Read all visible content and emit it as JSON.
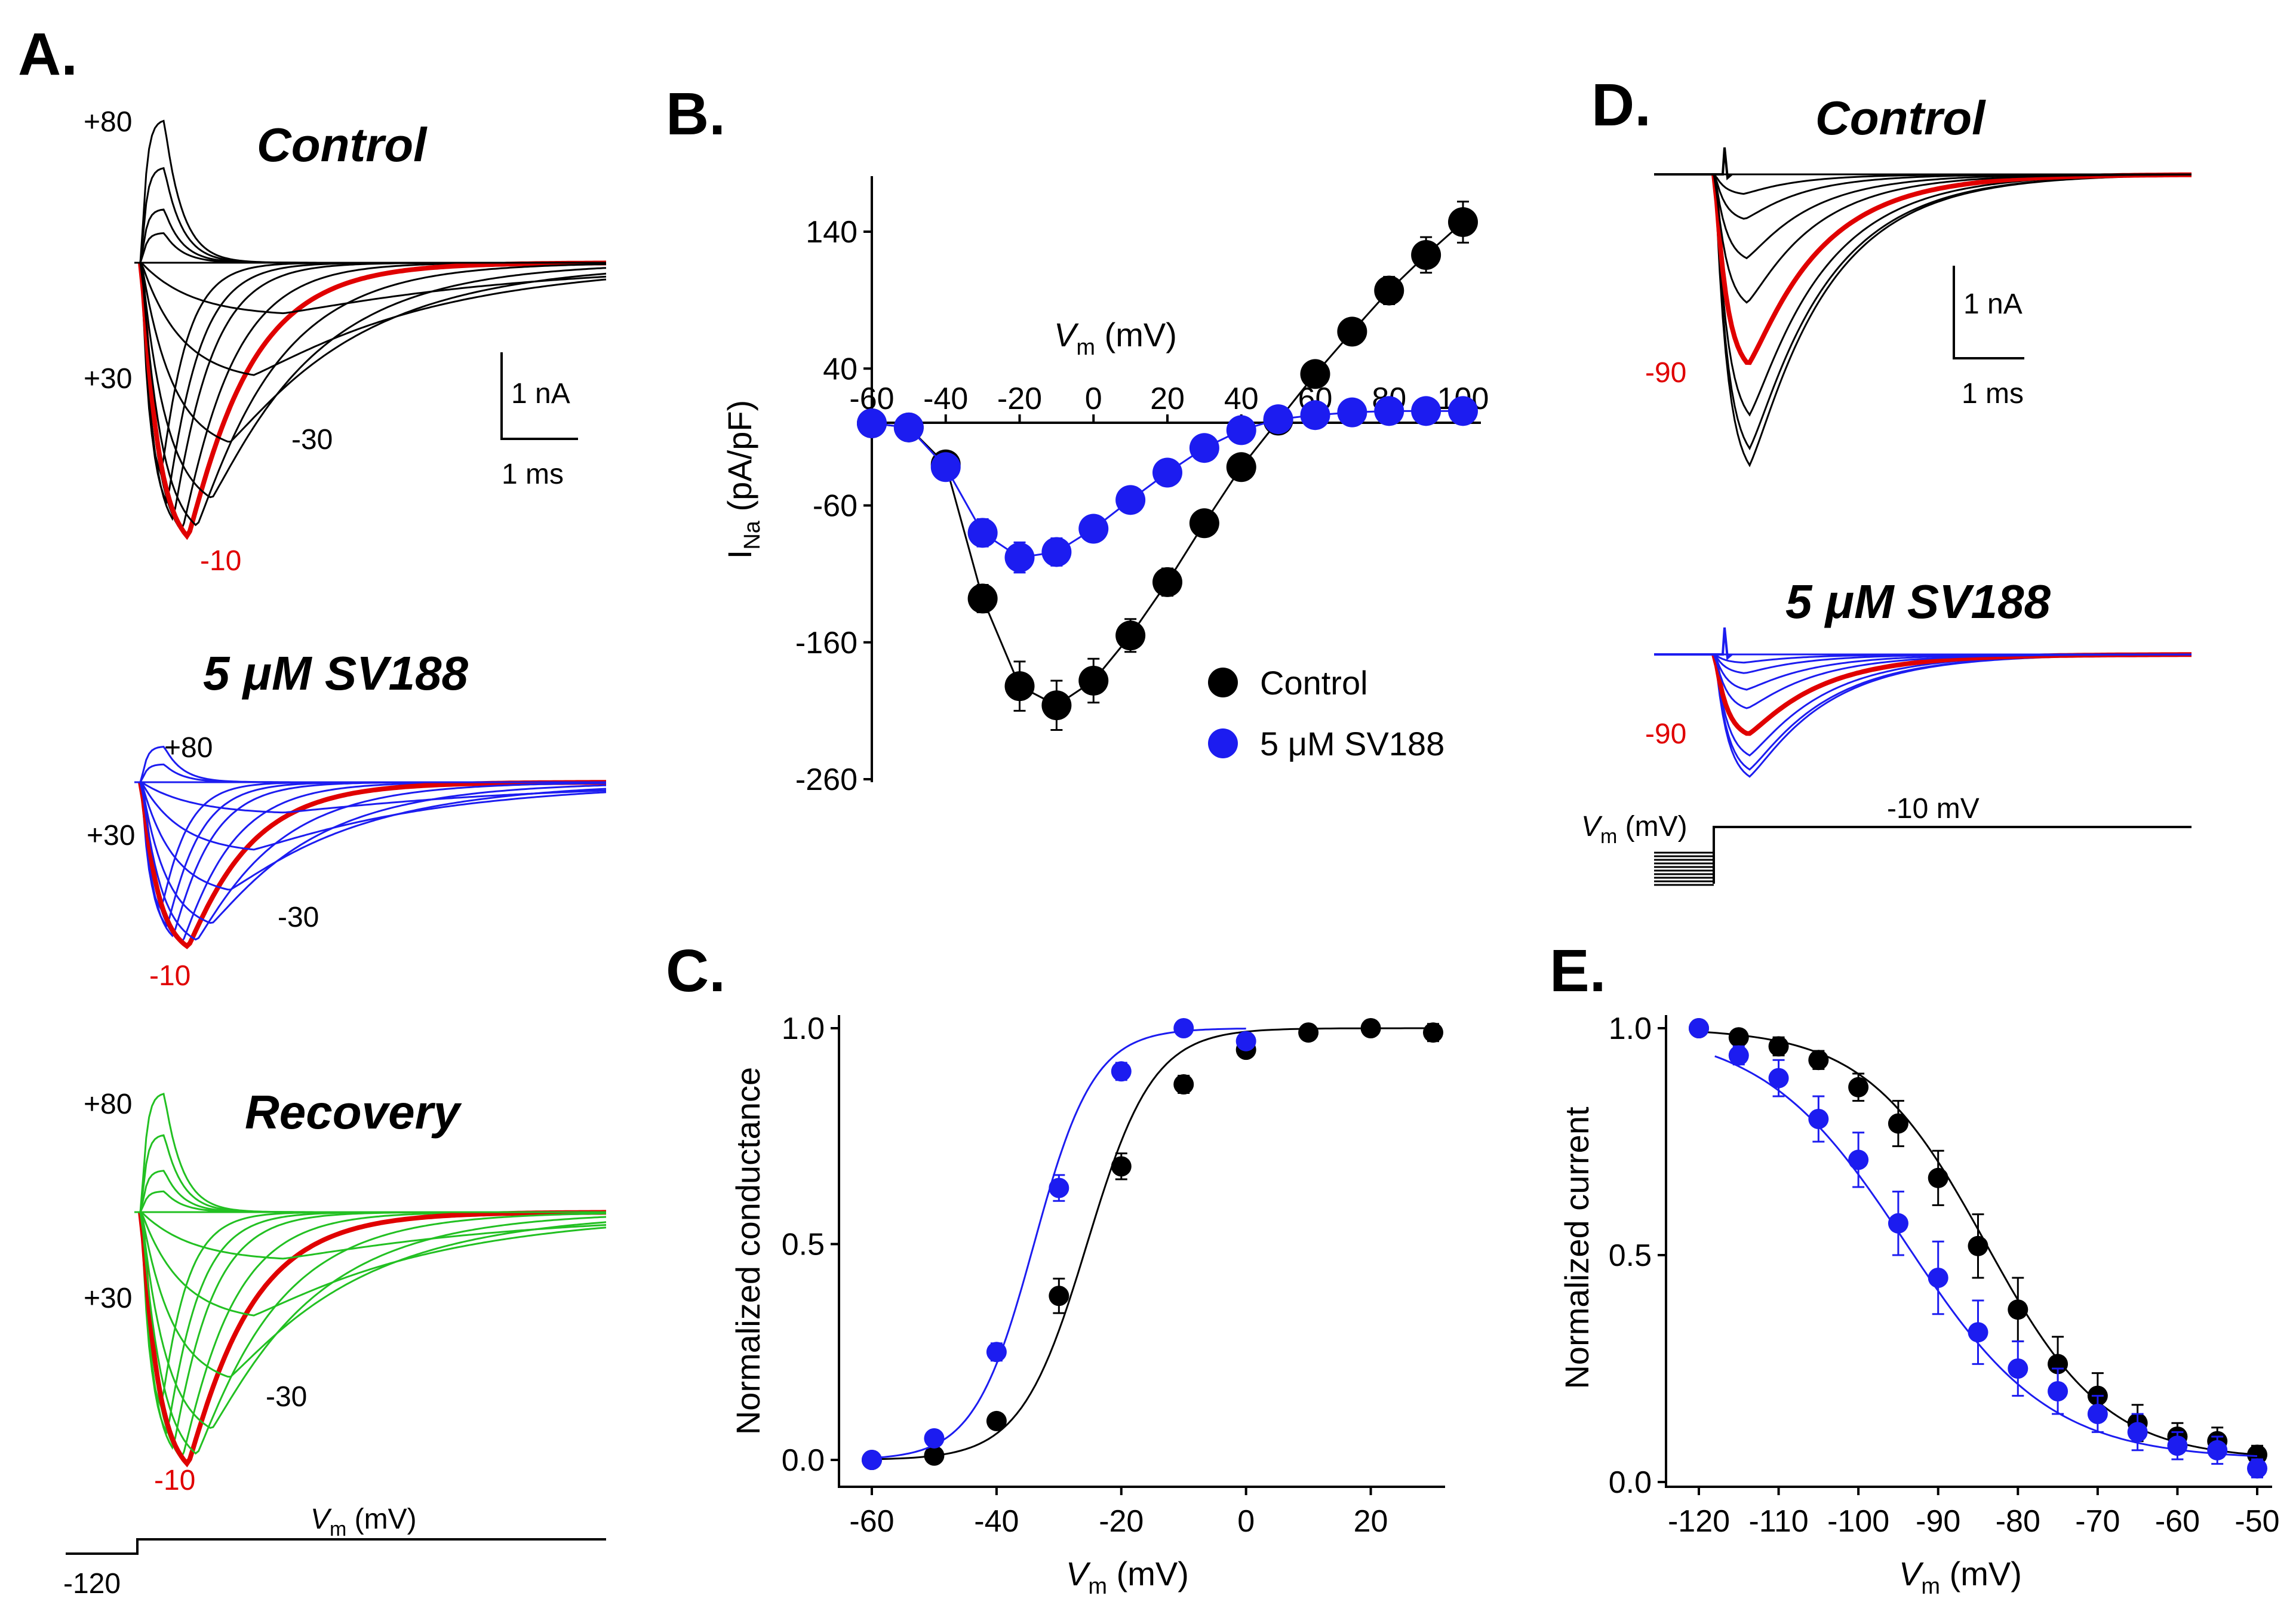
{
  "colors": {
    "control": "#000000",
    "sv188": "#1c1cf0",
    "recovery": "#22c022",
    "highlight": "#e00000"
  },
  "panel_labels": {
    "a": "A.",
    "b": "B.",
    "c": "C.",
    "d": "D.",
    "e": "E."
  },
  "panel_a": {
    "control": {
      "title": "Control",
      "labels": {
        "v80": "+80",
        "v30": "+30",
        "vm30": "-30",
        "vm10": "-10"
      },
      "scale": {
        "current": "1 nA",
        "time": "1 ms"
      }
    },
    "sv188": {
      "title": "5 μM SV188",
      "labels": {
        "v80": "+80",
        "v30": "+30",
        "vm30": "-30",
        "vm10": "-10"
      }
    },
    "recovery": {
      "title": "Recovery",
      "labels": {
        "v80": "+80",
        "v30": "+30",
        "vm30": "-30",
        "vm10": "-10"
      }
    },
    "protocol": {
      "vm": "V",
      "vm_sub": "m",
      "vm_unit": " (mV)",
      "hold": "-120"
    }
  },
  "panel_d": {
    "control": {
      "title": "Control",
      "label": "-90",
      "scale": {
        "current": "1 nA",
        "time": "1 ms"
      }
    },
    "sv188": {
      "title": "5 μM SV188",
      "label": "-90"
    },
    "protocol": {
      "vm": "V",
      "vm_sub": "m",
      "vm_unit": " (mV)",
      "step": "-10 mV"
    }
  },
  "chart_data": [
    {
      "id": "B",
      "type": "line",
      "title": "",
      "xlabel": "Vm (mV)",
      "ylabel": "INa (pA/pF)",
      "xlabel_parts": {
        "v": "V",
        "sub": "m",
        "unit": " (mV)"
      },
      "ylabel_parts": {
        "i": "I",
        "sub": "Na",
        "unit": " (pA/pF)"
      },
      "xlim": [
        -60,
        100
      ],
      "ylim": [
        -260,
        170
      ],
      "xticks": [
        -60,
        -40,
        -20,
        0,
        20,
        40,
        60,
        80,
        100
      ],
      "xtick_labels": [
        "-60",
        "-40",
        "-20",
        "0",
        "20",
        "40",
        "60",
        "80",
        "100"
      ],
      "yticks": [
        -260,
        -160,
        -60,
        40,
        140
      ],
      "ytick_labels": [
        "-260",
        "-160",
        "-60",
        "40",
        "140"
      ],
      "legend": {
        "position": "bottom-right",
        "labels": [
          "Control",
          "5 μM SV188"
        ]
      },
      "series": [
        {
          "name": "Control",
          "color": "#000000",
          "x": [
            -60,
            -50,
            -40,
            -30,
            -20,
            -10,
            0,
            10,
            20,
            30,
            40,
            50,
            60,
            70,
            80,
            90,
            100
          ],
          "y": [
            0,
            -3,
            -30,
            -128,
            -192,
            -206,
            -188,
            -155,
            -116,
            -73,
            -32,
            2,
            36,
            67,
            97,
            123,
            147
          ],
          "err": [
            0,
            3,
            5,
            10,
            18,
            18,
            16,
            12,
            10,
            8,
            6,
            4,
            6,
            8,
            10,
            13,
            15
          ]
        },
        {
          "name": "5 μM SV188",
          "color": "#1c1cf0",
          "x": [
            -60,
            -50,
            -40,
            -30,
            -20,
            -10,
            0,
            10,
            20,
            30,
            40,
            50,
            60,
            70,
            80,
            90,
            100
          ],
          "y": [
            0,
            -3,
            -32,
            -80,
            -98,
            -94,
            -77,
            -56,
            -36,
            -18,
            -5,
            3,
            6,
            8,
            9,
            9,
            9
          ],
          "err": [
            0,
            3,
            4,
            10,
            11,
            10,
            8,
            6,
            5,
            4,
            3,
            3,
            3,
            3,
            3,
            3,
            3
          ]
        }
      ]
    },
    {
      "id": "C",
      "type": "scatter",
      "title": "",
      "xlabel": "Vm (mV)",
      "ylabel": "Normalized conductance",
      "xlabel_parts": {
        "v": "V",
        "sub": "m",
        "unit": " (mV)"
      },
      "xlim": [
        -63,
        30
      ],
      "ylim": [
        0,
        1.05
      ],
      "xticks": [
        -60,
        -40,
        -20,
        0,
        20
      ],
      "xtick_labels": [
        "-60",
        "-40",
        "-20",
        "0",
        "20"
      ],
      "yticks": [
        0,
        0.5,
        1
      ],
      "ytick_labels": [
        "0.0",
        "0.5",
        "1.0"
      ],
      "series": [
        {
          "name": "Control",
          "color": "#000000",
          "x": [
            -60,
            -50,
            -40,
            -30,
            -20,
            -10,
            0,
            10,
            20,
            30
          ],
          "y": [
            0.0,
            0.01,
            0.09,
            0.38,
            0.68,
            0.87,
            0.95,
            0.99,
            1.0,
            0.99
          ],
          "err": [
            0,
            0.01,
            0.01,
            0.04,
            0.03,
            0.02,
            0.01,
            0.01,
            0.01,
            0.02
          ],
          "fit": {
            "model": "boltzmann",
            "v_half": -25.5,
            "k": 5.3
          }
        },
        {
          "name": "5 μM SV188",
          "color": "#1c1cf0",
          "x": [
            -60,
            -50,
            -40,
            -30,
            -20,
            -10,
            0
          ],
          "y": [
            0.0,
            0.05,
            0.25,
            0.63,
            0.9,
            1.0,
            0.97
          ],
          "err": [
            0,
            0.01,
            0.02,
            0.03,
            0.02,
            0.01,
            0.01
          ],
          "fit": {
            "model": "boltzmann",
            "v_half": -34,
            "k": 4.8
          }
        }
      ]
    },
    {
      "id": "E",
      "type": "scatter",
      "title": "",
      "xlabel": "Vm (mV)",
      "ylabel": "Normalized current",
      "xlabel_parts": {
        "v": "V",
        "sub": "m",
        "unit": " (mV)"
      },
      "xlim": [
        -122,
        -50
      ],
      "ylim": [
        0,
        1.05
      ],
      "xticks": [
        -120,
        -110,
        -100,
        -90,
        -80,
        -70,
        -60,
        -50
      ],
      "xtick_labels": [
        "-120",
        "-110",
        "-100",
        "-90",
        "-80",
        "-70",
        "-60",
        "-50"
      ],
      "yticks": [
        0,
        0.5,
        1
      ],
      "ytick_labels": [
        "0.0",
        "0.5",
        "1.0"
      ],
      "series": [
        {
          "name": "Control",
          "color": "#000000",
          "x": [
            -120,
            -115,
            -110,
            -105,
            -100,
            -95,
            -90,
            -85,
            -80,
            -75,
            -70,
            -65,
            -60,
            -55,
            -50
          ],
          "y": [
            1.0,
            0.98,
            0.96,
            0.93,
            0.87,
            0.79,
            0.67,
            0.52,
            0.38,
            0.26,
            0.19,
            0.13,
            0.1,
            0.09,
            0.06
          ],
          "err": [
            0,
            0.01,
            0.02,
            0.02,
            0.03,
            0.05,
            0.06,
            0.07,
            0.07,
            0.06,
            0.05,
            0.04,
            0.03,
            0.03,
            0.02
          ],
          "fit": {
            "model": "boltzmann_inact",
            "v_half": -84,
            "k": 7.5,
            "floor": 0.05
          }
        },
        {
          "name": "5 μM SV188",
          "color": "#1c1cf0",
          "x": [
            -120,
            -115,
            -110,
            -105,
            -100,
            -95,
            -90,
            -85,
            -80,
            -75,
            -70,
            -65,
            -60,
            -55,
            -50
          ],
          "y": [
            1.0,
            0.94,
            0.89,
            0.8,
            0.71,
            0.57,
            0.45,
            0.33,
            0.25,
            0.2,
            0.15,
            0.11,
            0.08,
            0.07,
            0.03
          ],
          "err": [
            0,
            0.02,
            0.04,
            0.05,
            0.06,
            0.07,
            0.08,
            0.07,
            0.06,
            0.05,
            0.04,
            0.04,
            0.03,
            0.03,
            0.02
          ],
          "fit": {
            "model": "boltzmann_inact",
            "v_half": -94,
            "k": 9,
            "floor": 0.05
          }
        }
      ]
    }
  ]
}
